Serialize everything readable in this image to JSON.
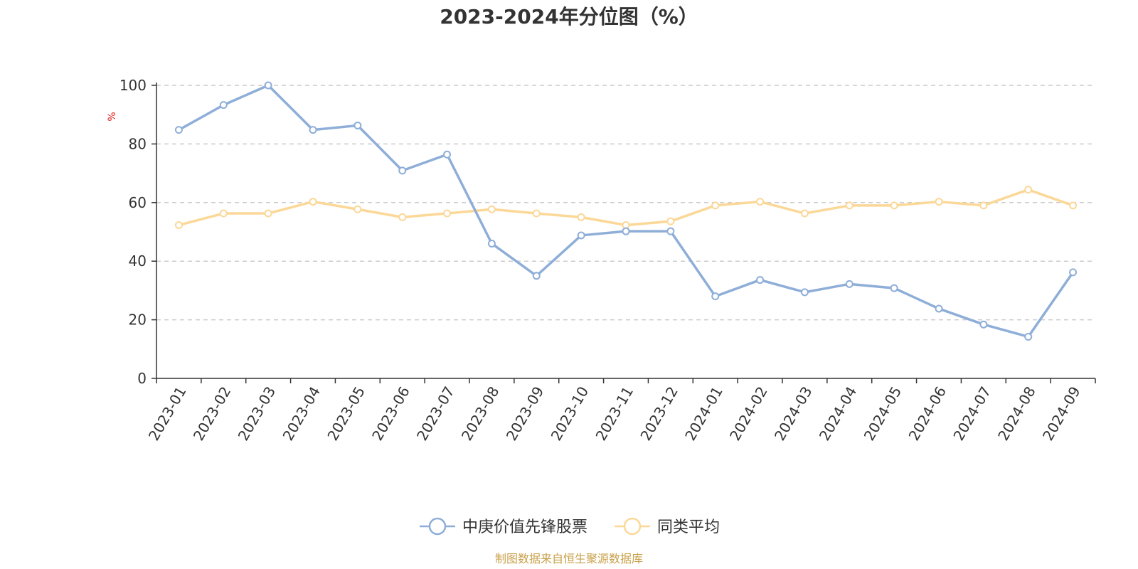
{
  "chart_data": {
    "type": "line",
    "title": "2023-2024年分位图（%）",
    "ylabel": "%",
    "ylim": [
      0,
      100
    ],
    "yticks": [
      0,
      20,
      40,
      60,
      80,
      100
    ],
    "grid": true,
    "legend_position": "bottom-center",
    "categories": [
      "2023-01",
      "2023-02",
      "2023-03",
      "2023-04",
      "2023-05",
      "2023-06",
      "2023-07",
      "2023-08",
      "2023-09",
      "2023-10",
      "2023-11",
      "2023-12",
      "2024-01",
      "2024-02",
      "2024-03",
      "2024-04",
      "2024-05",
      "2024-06",
      "2024-07",
      "2024-08",
      "2024-09"
    ],
    "series": [
      {
        "name": "中庚价值先锋股票",
        "color": "#8eaed8",
        "values": [
          84.8,
          93.3,
          100,
          84.8,
          86.3,
          70.9,
          76.4,
          46.0,
          35.0,
          48.8,
          50.2,
          50.2,
          28.0,
          33.6,
          29.4,
          32.2,
          30.8,
          23.8,
          18.4,
          14.2,
          36.2
        ]
      },
      {
        "name": "同类平均",
        "color": "#fbd898",
        "values": [
          52.3,
          56.3,
          56.3,
          60.3,
          57.7,
          55.0,
          56.3,
          57.7,
          56.3,
          55.0,
          52.3,
          53.6,
          59.0,
          60.3,
          56.3,
          59.0,
          59.0,
          60.3,
          59.0,
          64.4,
          59.0
        ]
      }
    ],
    "source": "制图数据来自恒生聚源数据库",
    "colors": {
      "title": "#333333",
      "axis": "#333333",
      "grid": "#cccccc",
      "ylabel": "#e31a1a",
      "source": "#c9a04a"
    }
  }
}
